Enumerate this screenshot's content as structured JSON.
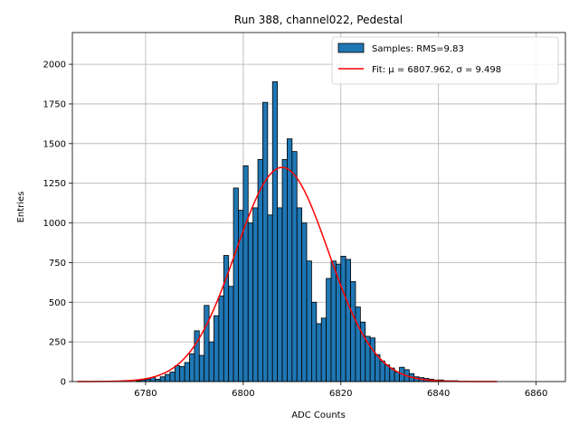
{
  "chart_data": {
    "type": "bar",
    "title": "Run 388, channel022, Pedestal",
    "xlabel": "ADC Counts",
    "ylabel": "Entries",
    "xlim": [
      6765,
      6866
    ],
    "ylim": [
      0,
      2200
    ],
    "xticks": [
      6780,
      6800,
      6820,
      6840,
      6860
    ],
    "yticks": [
      0,
      250,
      500,
      750,
      1000,
      1250,
      1500,
      1750,
      2000
    ],
    "grid": true,
    "legend_position": "top-right",
    "legend": [
      "Samples: RMS=9.83",
      "Fit: μ = 6807.962, σ = 9.498"
    ],
    "histogram": {
      "bin_width": 1,
      "bin_start": 6766,
      "name": "Samples: RMS=9.83",
      "color": "#1f77b4",
      "edgecolor": "#000000",
      "values": [
        0,
        0,
        0,
        0,
        0,
        0,
        0,
        0,
        0,
        0,
        0,
        0,
        5,
        10,
        15,
        25,
        15,
        30,
        45,
        60,
        100,
        95,
        120,
        175,
        320,
        165,
        480,
        250,
        415,
        540,
        795,
        600,
        1220,
        1080,
        1360,
        1000,
        1095,
        1400,
        1760,
        1050,
        1890,
        1095,
        1400,
        1530,
        1450,
        1095,
        1000,
        760,
        500,
        365,
        400,
        650,
        760,
        740,
        790,
        770,
        630,
        470,
        375,
        285,
        275,
        170,
        130,
        105,
        85,
        60,
        90,
        75,
        50,
        30,
        25,
        20,
        15,
        10,
        10,
        5,
        5,
        5,
        0,
        0,
        0,
        0,
        0,
        0,
        0,
        0,
        0
      ]
    },
    "fit": {
      "name": "Fit: μ = 6807.962, σ = 9.498",
      "mu": 6807.962,
      "sigma": 9.498,
      "amplitude": 1350,
      "x_range": [
        6766,
        6852
      ],
      "color": "#ff0000"
    }
  }
}
